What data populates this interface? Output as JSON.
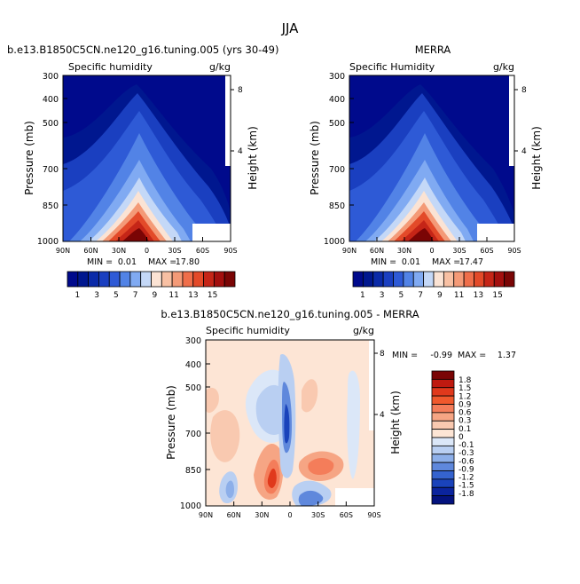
{
  "figure_title": "JJA",
  "chart_data": [
    {
      "type": "heatmap",
      "title": "b.e13.B1850C5CN.ne120_g16.tuning.005 (yrs 30-49)",
      "left_string": "Specific humidity",
      "right_string": "g/kg",
      "ylabel": "Pressure (mb)",
      "y2label": "Height (km)",
      "x_ticks": [
        "90N",
        "60N",
        "30N",
        "0",
        "30S",
        "60S",
        "90S"
      ],
      "y_ticks": [
        "300",
        "400",
        "500",
        "700",
        "850",
        "1000"
      ],
      "y2_ticks": [
        "8",
        "4"
      ],
      "min_label": "MIN =",
      "min_value": "0.01",
      "max_label": "MAX =",
      "max_value": "17.80",
      "colorbar_labels": [
        "1",
        "3",
        "5",
        "7",
        "9",
        "11",
        "13",
        "15"
      ]
    },
    {
      "type": "heatmap",
      "title": "MERRA",
      "left_string": "Specific Humidity",
      "right_string": "g/kg",
      "ylabel": "Pressure (mb)",
      "y2label": "Height (km)",
      "x_ticks": [
        "90N",
        "60N",
        "30N",
        "0",
        "30S",
        "60S",
        "90S"
      ],
      "y_ticks": [
        "300",
        "400",
        "500",
        "700",
        "850",
        "1000"
      ],
      "y2_ticks": [
        "8",
        "4"
      ],
      "min_label": "MIN =",
      "min_value": "0.01",
      "max_label": "MAX =",
      "max_value": "17.47",
      "colorbar_labels": [
        "1",
        "3",
        "5",
        "7",
        "9",
        "11",
        "13",
        "15"
      ]
    },
    {
      "type": "heatmap",
      "title": "b.e13.B1850C5CN.ne120_g16.tuning.005 - MERRA",
      "left_string": "Specific humidity",
      "right_string": "g/kg",
      "ylabel": "Pressure (mb)",
      "y2label": "Height (km)",
      "x_ticks": [
        "90N",
        "60N",
        "30N",
        "0",
        "30S",
        "60S",
        "90S"
      ],
      "y_ticks": [
        "300",
        "400",
        "500",
        "700",
        "850",
        "1000"
      ],
      "y2_ticks": [
        "8",
        "4"
      ],
      "min_label": "MIN =",
      "min_value": "-0.99",
      "max_label": "MAX =",
      "max_value": "1.37",
      "colorbar_labels": [
        "1.8",
        "1.5",
        "1.2",
        "0.9",
        "0.6",
        "0.3",
        "0.1",
        "0",
        "-0.1",
        "-0.3",
        "-0.6",
        "-0.9",
        "-1.2",
        "-1.5",
        "-1.8"
      ]
    }
  ],
  "colors": {
    "seq": [
      "#000a8c",
      "#00178f",
      "#0a2aa8",
      "#1a3fc0",
      "#2e5ad6",
      "#5283e6",
      "#80aaf2",
      "#c4d8f7",
      "#fbe3d4",
      "#f8c0a3",
      "#f49a77",
      "#ef6e4a",
      "#e34a29",
      "#c52517",
      "#a30f0e",
      "#7a0505"
    ],
    "div": [
      "#7a0505",
      "#bf1a10",
      "#e0391c",
      "#f0592d",
      "#f47d5a",
      "#f6a584",
      "#f9c9b0",
      "#fde5d5",
      "#dbe7f8",
      "#b9cff2",
      "#8dafe9",
      "#5f88dc",
      "#3563cf",
      "#1a43bb",
      "#0b249e",
      "#04127e"
    ]
  }
}
